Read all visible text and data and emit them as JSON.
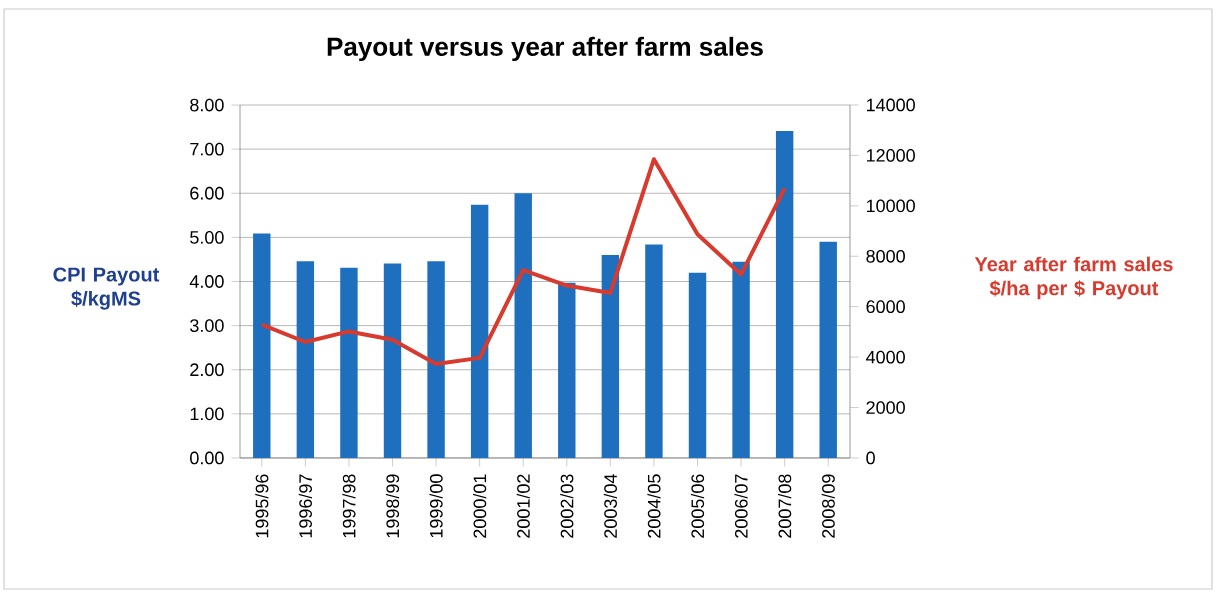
{
  "chart_data": {
    "type": "bar",
    "title": "Payout versus year after farm sales",
    "ylabel": "CPI Payout $/kgMS",
    "y2label": "Year after farm sales $/ha per $ Payout",
    "categories": [
      "1995/96",
      "1996/97",
      "1997/98",
      "1998/99",
      "1999/00",
      "2000/01",
      "2001/02",
      "2002/03",
      "2003/04",
      "2004/05",
      "2005/06",
      "2006/07",
      "2007/08",
      "2008/09"
    ],
    "series": [
      {
        "color": "#1f6fbf",
        "values": [
          5.09,
          4.46,
          4.31,
          4.41,
          4.46,
          5.74,
          6.0,
          3.97,
          4.6,
          4.84,
          4.2,
          4.45,
          7.41,
          4.9
        ]
      },
      {
        "type": "line",
        "axis": "y2",
        "color": "#d83a2e",
        "values": [
          5290,
          4600,
          5020,
          4690,
          3730,
          3970,
          7450,
          6840,
          6540,
          11850,
          8870,
          7280,
          10690,
          null
        ]
      }
    ],
    "ylim": [
      0,
      8
    ],
    "yticks": [
      {
        "value": 0,
        "label": "0.00"
      },
      {
        "value": 1,
        "label": "1.00"
      },
      {
        "value": 2,
        "label": "2.00"
      },
      {
        "value": 3,
        "label": "3.00"
      },
      {
        "value": 4,
        "label": "4.00"
      },
      {
        "value": 5,
        "label": "5.00"
      },
      {
        "value": 6,
        "label": "6.00"
      },
      {
        "value": 7,
        "label": "7.00"
      },
      {
        "value": 8,
        "label": "8.00"
      }
    ],
    "y2lim": [
      0,
      14000
    ],
    "y2ticks": [
      0,
      2000,
      4000,
      6000,
      8000,
      10000,
      12000,
      14000
    ],
    "grid": "y",
    "marker": "none",
    "line_style": "solid"
  }
}
